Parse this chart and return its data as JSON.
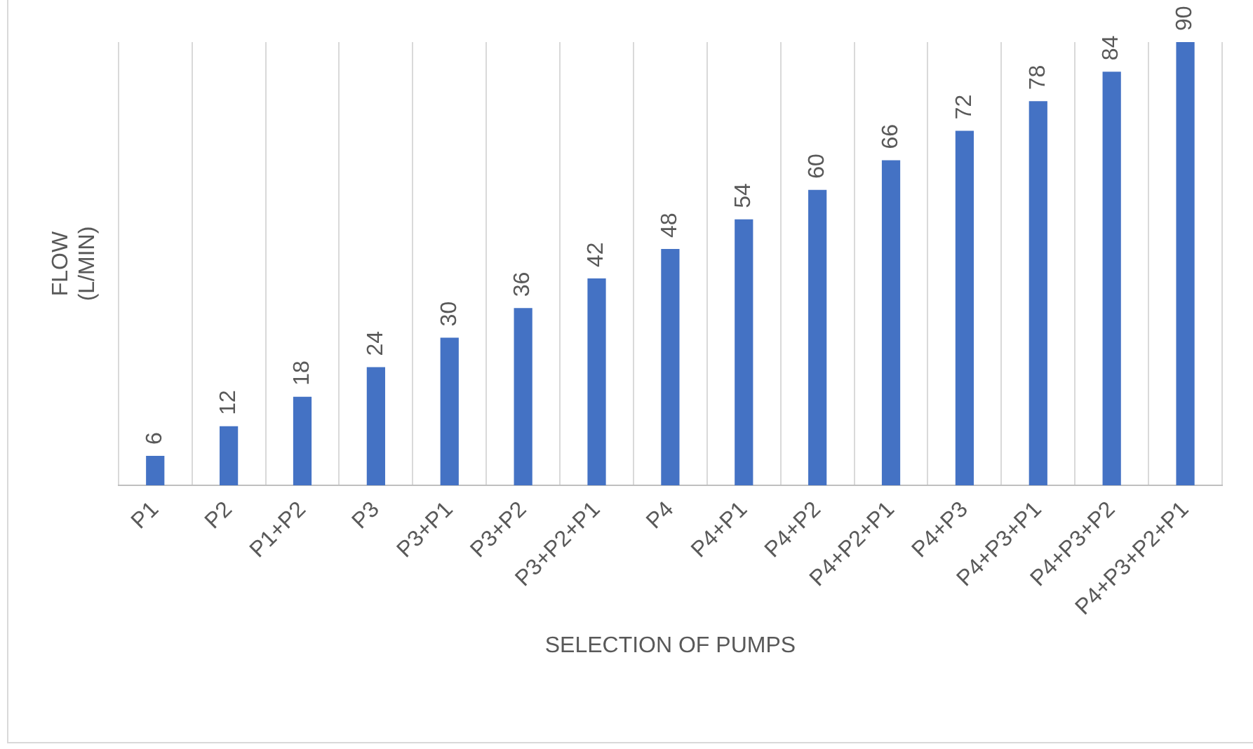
{
  "chart_data": {
    "type": "bar",
    "xlabel": "SELECTION OF PUMPS",
    "ylabel": "FLOW\n(L/MIN)",
    "categories": [
      "P1",
      "P2",
      "P1+P2",
      "P3",
      "P3+P1",
      "P3+P2",
      "P3+P2+P1",
      "P4",
      "P4+P1",
      "P4+P2",
      "P4+P2+P1",
      "P4+P3",
      "P4+P3+P1",
      "P4+P3+P2",
      "P4+P3+P2+P1"
    ],
    "values": [
      6,
      12,
      18,
      24,
      30,
      36,
      42,
      48,
      54,
      60,
      66,
      72,
      78,
      84,
      90
    ],
    "color": "#4472c4",
    "data_labels": true,
    "grid": "x",
    "legend": false
  }
}
